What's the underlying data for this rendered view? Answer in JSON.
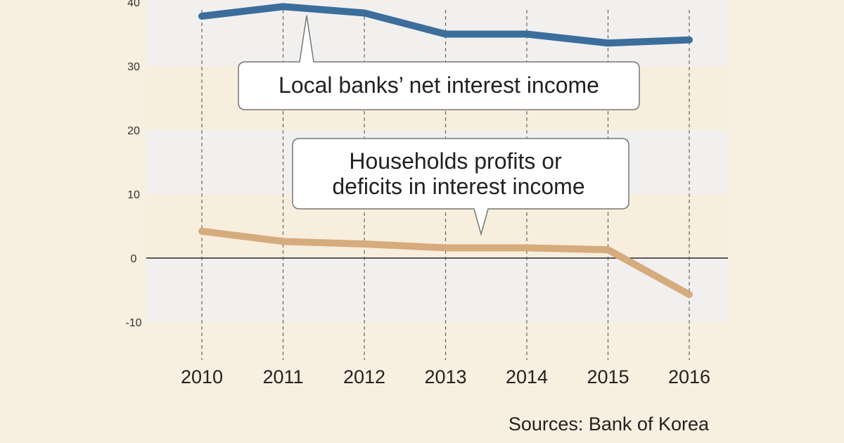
{
  "chart_data": {
    "type": "line",
    "categories": [
      "2010",
      "2011",
      "2012",
      "2013",
      "2014",
      "2015",
      "2016"
    ],
    "series": [
      {
        "name": "Local banks’ net interest income",
        "values": [
          37.8,
          39.3,
          38.3,
          35.0,
          35.0,
          33.6,
          34.1
        ],
        "color": "#3c6e9b"
      },
      {
        "name": "Households profits or deficits in interest income",
        "values": [
          4.2,
          2.6,
          2.2,
          1.6,
          1.6,
          1.3,
          -5.7
        ],
        "color": "#d6ab7d"
      }
    ],
    "yticks": [
      40,
      30,
      20,
      10,
      0,
      -10
    ],
    "ylim": [
      -10,
      40
    ],
    "grid": "alternating horizontal bands; dashed vertical guide at each year",
    "zero_line": true,
    "source": "Sources: Bank of Korea",
    "colors": {
      "background": "#f7efdf",
      "band_light": "#f1f0ef",
      "band_warm": "#f7eedd",
      "zero_line": "#444444",
      "guide": "#666666"
    }
  }
}
